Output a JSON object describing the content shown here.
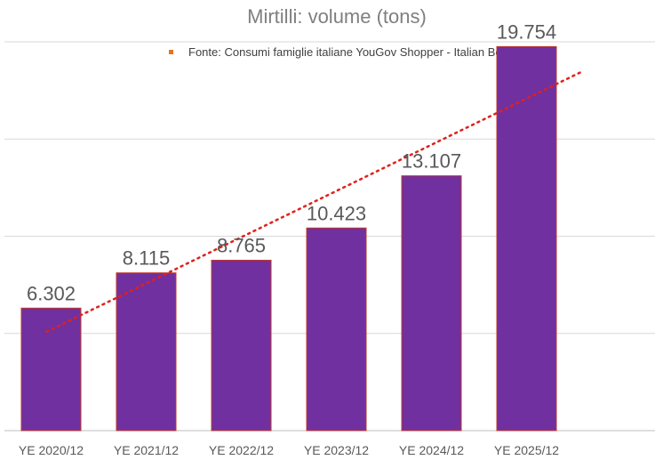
{
  "chart_data": {
    "type": "bar",
    "title": "Mirtilli: volume (tons)",
    "legend": {
      "entries": [
        "Fonte: Consumi famiglie italiane YouGov Shopper - Italian Berry"
      ],
      "position": "top"
    },
    "categories": [
      "YE 2020/12",
      "YE 2021/12",
      "YE 2022/12",
      "YE 2023/12",
      "YE 2024/12",
      "YE 2025/12"
    ],
    "values": [
      6.302,
      8.115,
      8.765,
      10.423,
      13.107,
      19.754
    ],
    "data_labels": [
      "6.302",
      "8.115",
      "8.765",
      "10.423",
      "13.107",
      "19.754"
    ],
    "ylim": [
      0,
      20
    ],
    "grid": true,
    "trendline": {
      "type": "linear",
      "style": "dotted"
    },
    "colors": {
      "bar": "#7030a0",
      "bar_border": "#c0392b",
      "trend": "#e0201c",
      "grid": "#d9d9d9",
      "legend_marker": "#e8731c"
    }
  }
}
